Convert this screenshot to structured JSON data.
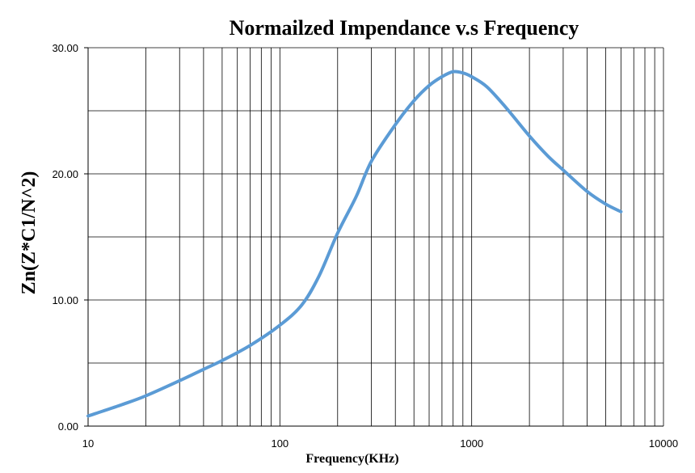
{
  "chart_data": {
    "type": "line",
    "title": "Normailzed Impendance v.s Frequency",
    "xlabel": "Frequency(KHz)",
    "ylabel": "Zn(Z*C1/N^2)",
    "x_scale": "log",
    "xlim": [
      10,
      10000
    ],
    "ylim": [
      0,
      30
    ],
    "x_ticks": [
      10,
      100,
      1000,
      10000
    ],
    "x_tick_labels": [
      "10",
      "100",
      "1000",
      "10000"
    ],
    "y_ticks": [
      0,
      10,
      20,
      30
    ],
    "y_tick_labels": [
      "0.00",
      "10.00",
      "20.00",
      "30.00"
    ],
    "y_minor_gridlines": [
      5,
      15,
      25
    ],
    "grid": true,
    "legend": "none",
    "series": [
      {
        "color": "#5B9BD5",
        "x": [
          10,
          15,
          20,
          30,
          40,
          50,
          70,
          100,
          130,
          160,
          200,
          250,
          300,
          400,
          500,
          600,
          700,
          800,
          900,
          1000,
          1200,
          1500,
          2000,
          2500,
          3000,
          4000,
          5000,
          6000
        ],
        "y": [
          0.8,
          1.7,
          2.4,
          3.6,
          4.5,
          5.2,
          6.4,
          8.0,
          9.6,
          11.9,
          15.3,
          18.2,
          21.0,
          23.9,
          25.8,
          27.0,
          27.7,
          28.1,
          28.0,
          27.7,
          26.9,
          25.3,
          23.0,
          21.4,
          20.3,
          18.6,
          17.6,
          17.0
        ]
      }
    ]
  }
}
